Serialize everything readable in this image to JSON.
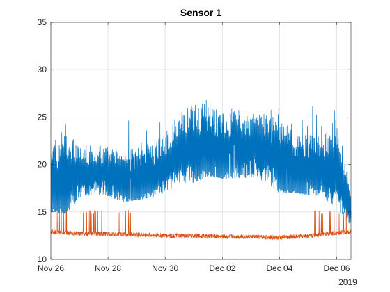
{
  "chart_data": {
    "type": "line",
    "title": "Sensor 1",
    "xlabel": "",
    "ylabel": "",
    "x_axis": {
      "scale": "time",
      "range": [
        "2019-11-26",
        "2019-12-06 12:00"
      ],
      "tick_labels": [
        "Nov 26",
        "Nov 28",
        "Nov 30",
        "Dec 02",
        "Dec 04",
        "Dec 06"
      ],
      "tick_dates": [
        "2019-11-26",
        "2019-11-28",
        "2019-11-30",
        "2019-12-02",
        "2019-12-04",
        "2019-12-06"
      ],
      "secondary_label": "2019"
    },
    "y_axis": {
      "range": [
        10,
        35
      ],
      "ticks": [
        10,
        15,
        20,
        25,
        30,
        35
      ]
    },
    "grid": true,
    "colors": {
      "series1": "#0072BD",
      "series2": "#D95319",
      "grid": "#dfdfdf",
      "axis": "#262626"
    },
    "series": [
      {
        "color": "#0072BD",
        "style": "high-frequency daily oscillation",
        "x": [
          "2019-11-26",
          "2019-11-26 12:00",
          "2019-11-27",
          "2019-11-27 12:00",
          "2019-11-28",
          "2019-11-28 12:00",
          "2019-11-29",
          "2019-11-29 12:00",
          "2019-11-30",
          "2019-11-30 12:00",
          "2019-12-01",
          "2019-12-01 12:00",
          "2019-12-02",
          "2019-12-02 12:00",
          "2019-12-03",
          "2019-12-03 12:00",
          "2019-12-04",
          "2019-12-04 12:00",
          "2019-12-05",
          "2019-12-05 12:00",
          "2019-12-06",
          "2019-12-06 12:00"
        ],
        "low": [
          15.0,
          14.8,
          16.2,
          16.5,
          16.5,
          16.0,
          16.2,
          16.5,
          16.8,
          17.5,
          18.0,
          18.8,
          18.5,
          18.5,
          18.2,
          17.8,
          17.0,
          17.0,
          16.8,
          16.5,
          14.5,
          13.5
        ],
        "high": [
          24.0,
          24.5,
          22.5,
          22.0,
          22.0,
          22.5,
          23.0,
          23.0,
          23.5,
          25.5,
          27.0,
          28.0,
          26.5,
          26.5,
          25.5,
          26.0,
          25.5,
          24.5,
          24.5,
          23.0,
          25.0,
          18.0
        ]
      },
      {
        "color": "#D95319",
        "style": "near-constant baseline with intermittent spikes",
        "x": [
          "2019-11-26",
          "2019-11-27",
          "2019-11-28",
          "2019-11-29",
          "2019-11-30",
          "2019-12-01",
          "2019-12-02",
          "2019-12-03",
          "2019-12-04",
          "2019-12-05",
          "2019-12-06",
          "2019-12-06 12:00"
        ],
        "values": [
          12.9,
          12.7,
          12.7,
          12.6,
          12.5,
          12.5,
          12.4,
          12.4,
          12.3,
          12.5,
          12.8,
          12.9
        ],
        "spike_level": 15.2
      }
    ]
  }
}
